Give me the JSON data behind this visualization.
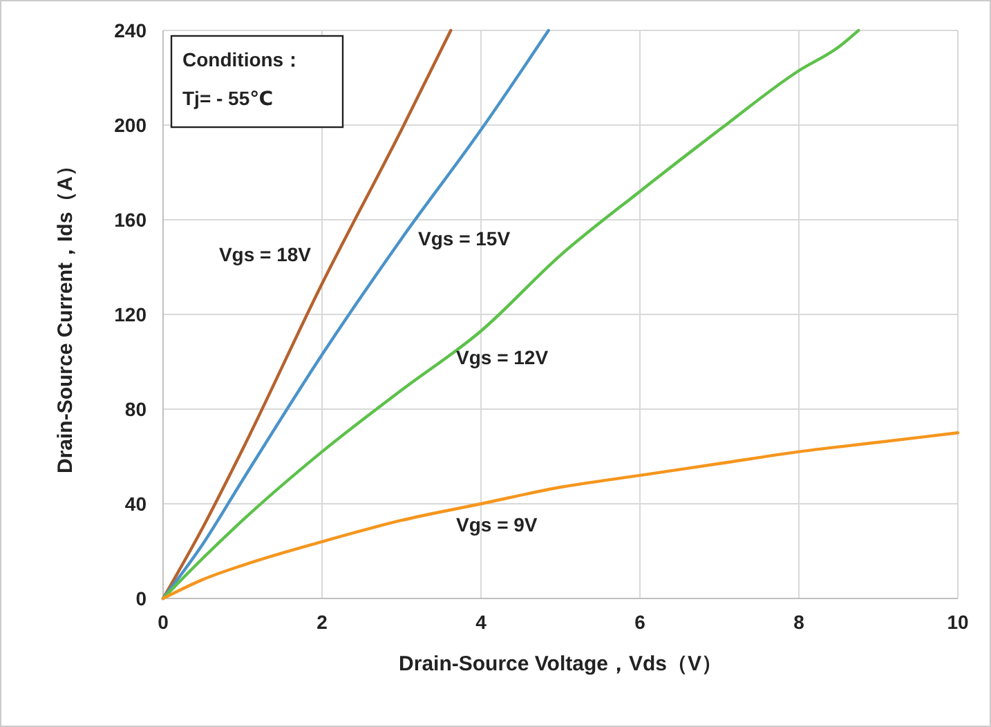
{
  "chart_data": {
    "type": "line",
    "xlabel": "Drain-Source Voltage，Vds（V）",
    "ylabel": "Drain-Source Current，Ids（A）",
    "xlim": [
      0,
      10
    ],
    "ylim": [
      0,
      240
    ],
    "xticks": [
      0,
      2,
      4,
      6,
      8,
      10
    ],
    "yticks": [
      0,
      40,
      80,
      120,
      160,
      200,
      240
    ],
    "grid": true,
    "marker": "none",
    "line_style": "solid",
    "annotations": [
      "Conditions：",
      "Tj= - 55℃"
    ],
    "series": [
      {
        "name": "Vgs = 18V",
        "color": "#b5622e",
        "x": [
          0,
          0.5,
          1,
          2,
          3,
          3.62
        ],
        "values": [
          0,
          30,
          63,
          133,
          198,
          240
        ]
      },
      {
        "name": "Vgs = 15V",
        "color": "#4b93c9",
        "x": [
          0,
          0.5,
          1,
          2,
          3,
          4,
          4.85
        ],
        "values": [
          0,
          23,
          50,
          103,
          152,
          198,
          240
        ]
      },
      {
        "name": "Vgs = 12V",
        "color": "#5dc14a",
        "x": [
          0,
          0.5,
          1,
          2,
          3,
          4,
          5,
          6,
          7,
          8,
          8.5,
          8.75
        ],
        "values": [
          0,
          17,
          33,
          62,
          88,
          113,
          145,
          172,
          198,
          223,
          233,
          240
        ]
      },
      {
        "name": "Vgs = 9V",
        "color": "#f5961e",
        "x": [
          0,
          0.5,
          1,
          2,
          3,
          4,
          5,
          6,
          7,
          8,
          9,
          10
        ],
        "values": [
          0,
          8,
          14,
          24,
          33,
          40,
          47,
          52,
          57,
          62,
          66,
          70
        ]
      }
    ]
  }
}
